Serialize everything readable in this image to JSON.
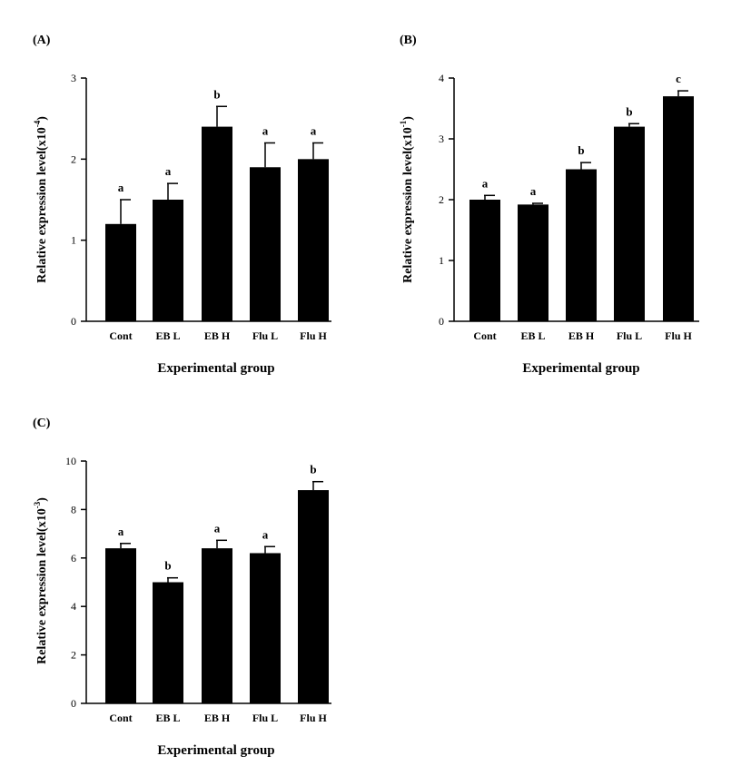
{
  "chart_data": [
    {
      "type": "bar",
      "panel_label": "(A)",
      "categories": [
        "Cont",
        "EB L",
        "EB H",
        "Flu L",
        "Flu H"
      ],
      "values": [
        1.2,
        1.5,
        2.4,
        1.9,
        2.0
      ],
      "errors": [
        0.3,
        0.2,
        0.25,
        0.3,
        0.2
      ],
      "significance": [
        "a",
        "a",
        "b",
        "a",
        "a"
      ],
      "yticks": [
        "0",
        "1",
        "2",
        "3"
      ],
      "ylim": [
        0,
        3
      ],
      "xlabel": "Experimental group",
      "ylabel_main": "Relative expression level(x10",
      "ylabel_exp": "-4",
      "ylabel_close": ")"
    },
    {
      "type": "bar",
      "panel_label": "(B)",
      "categories": [
        "Cont",
        "EB L",
        "EB H",
        "Flu L",
        "Flu H"
      ],
      "values": [
        2.0,
        1.92,
        2.5,
        3.2,
        3.7
      ],
      "errors": [
        0.07,
        0.02,
        0.11,
        0.05,
        0.09
      ],
      "significance": [
        "a",
        "a",
        "b",
        "b",
        "c"
      ],
      "yticks": [
        "0",
        "1",
        "2",
        "3",
        "4"
      ],
      "ylim": [
        0,
        4
      ],
      "xlabel": "Experimental group",
      "ylabel_main": "Relative expression level(x10",
      "ylabel_exp": "-1",
      "ylabel_close": ")"
    },
    {
      "type": "bar",
      "panel_label": "(C)",
      "categories": [
        "Cont",
        "EB L",
        "EB H",
        "Flu L",
        "Flu H"
      ],
      "values": [
        6.4,
        5.0,
        6.4,
        6.2,
        8.8
      ],
      "errors": [
        0.2,
        0.18,
        0.33,
        0.27,
        0.35
      ],
      "significance": [
        "a",
        "b",
        "a",
        "a",
        "b"
      ],
      "yticks": [
        "0",
        "2",
        "4",
        "6",
        "8",
        "10"
      ],
      "ylim": [
        0,
        10
      ],
      "xlabel": "Experimental group",
      "ylabel_main": "Relative expression level(x10",
      "ylabel_exp": "-3",
      "ylabel_close": ")"
    }
  ]
}
